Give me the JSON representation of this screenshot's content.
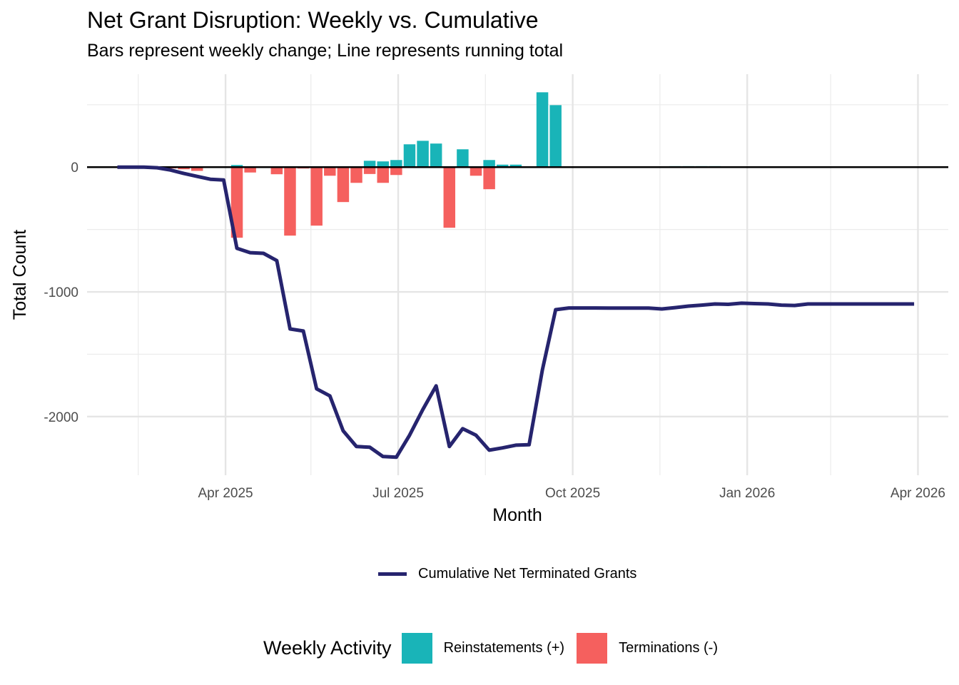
{
  "chart_data": {
    "type": "bar+line",
    "title": "Net Grant Disruption: Weekly vs. Cumulative",
    "subtitle": "Bars represent weekly change; Line represents running total",
    "xlabel": "Month",
    "ylabel": "Total Count",
    "xlim": [
      "2025-01-18",
      "2026-04-17"
    ],
    "ylim": [
      -2470,
      745
    ],
    "grid": true,
    "x_ticks": [
      {
        "date": "2025-04-01",
        "label": "Apr 2025"
      },
      {
        "date": "2025-07-01",
        "label": "Jul 2025"
      },
      {
        "date": "2025-10-01",
        "label": "Oct 2025"
      },
      {
        "date": "2026-01-01",
        "label": "Jan 2026"
      },
      {
        "date": "2026-04-01",
        "label": "Apr 2026"
      }
    ],
    "x_minor_ticks": [
      "2025-02-14",
      "2025-05-16",
      "2025-08-16",
      "2025-11-16",
      "2026-02-14"
    ],
    "y_ticks": [
      {
        "value": 0,
        "label": "0"
      },
      {
        "value": -1000,
        "label": "-1000"
      },
      {
        "value": -2000,
        "label": "-2000"
      }
    ],
    "y_minor_ticks": [
      500,
      -500,
      -1500
    ],
    "reference_line": 0,
    "bar_series": [
      {
        "name": "Reinstatements (+)",
        "color": "#19B4B8",
        "points": [
          {
            "date": "2025-04-07",
            "value": 17
          },
          {
            "date": "2025-04-14",
            "value": 6
          },
          {
            "date": "2025-05-19",
            "value": 7
          },
          {
            "date": "2025-06-16",
            "value": 51
          },
          {
            "date": "2025-06-23",
            "value": 46
          },
          {
            "date": "2025-06-30",
            "value": 57
          },
          {
            "date": "2025-07-07",
            "value": 183
          },
          {
            "date": "2025-07-14",
            "value": 211
          },
          {
            "date": "2025-07-21",
            "value": 189
          },
          {
            "date": "2025-08-04",
            "value": 143
          },
          {
            "date": "2025-08-18",
            "value": 57
          },
          {
            "date": "2025-08-25",
            "value": 20
          },
          {
            "date": "2025-09-01",
            "value": 20
          },
          {
            "date": "2025-09-15",
            "value": 600
          },
          {
            "date": "2025-09-22",
            "value": 497
          },
          {
            "date": "2025-09-29",
            "value": 5
          },
          {
            "date": "2025-11-24",
            "value": 8
          },
          {
            "date": "2025-12-01",
            "value": 8
          },
          {
            "date": "2025-12-08",
            "value": 8
          },
          {
            "date": "2025-12-15",
            "value": 8
          }
        ]
      },
      {
        "name": "Terminations (-)",
        "color": "#F5605E",
        "points": [
          {
            "date": "2025-03-03",
            "value": -10
          },
          {
            "date": "2025-03-10",
            "value": -17
          },
          {
            "date": "2025-03-17",
            "value": -30
          },
          {
            "date": "2025-03-24",
            "value": -4
          },
          {
            "date": "2025-04-07",
            "value": -566
          },
          {
            "date": "2025-04-14",
            "value": -43
          },
          {
            "date": "2025-04-28",
            "value": -57
          },
          {
            "date": "2025-05-05",
            "value": -549
          },
          {
            "date": "2025-05-12",
            "value": -11
          },
          {
            "date": "2025-05-19",
            "value": -469
          },
          {
            "date": "2025-05-26",
            "value": -69
          },
          {
            "date": "2025-06-02",
            "value": -280
          },
          {
            "date": "2025-06-09",
            "value": -126
          },
          {
            "date": "2025-06-16",
            "value": -55
          },
          {
            "date": "2025-06-23",
            "value": -126
          },
          {
            "date": "2025-06-30",
            "value": -63
          },
          {
            "date": "2025-07-28",
            "value": -486
          },
          {
            "date": "2025-08-11",
            "value": -69
          },
          {
            "date": "2025-08-18",
            "value": -177
          }
        ]
      }
    ],
    "line_series": {
      "name": "Cumulative Net Terminated Grants",
      "color": "#26246E",
      "points": [
        {
          "date": "2025-02-03",
          "value": 0
        },
        {
          "date": "2025-02-10",
          "value": 0
        },
        {
          "date": "2025-02-17",
          "value": 0
        },
        {
          "date": "2025-02-24",
          "value": -5
        },
        {
          "date": "2025-03-03",
          "value": -23
        },
        {
          "date": "2025-03-10",
          "value": -51
        },
        {
          "date": "2025-03-17",
          "value": -74
        },
        {
          "date": "2025-03-24",
          "value": -97
        },
        {
          "date": "2025-03-31",
          "value": -103
        },
        {
          "date": "2025-04-07",
          "value": -651
        },
        {
          "date": "2025-04-14",
          "value": -686
        },
        {
          "date": "2025-04-21",
          "value": -691
        },
        {
          "date": "2025-04-28",
          "value": -749
        },
        {
          "date": "2025-05-05",
          "value": -1297
        },
        {
          "date": "2025-05-12",
          "value": -1314
        },
        {
          "date": "2025-05-19",
          "value": -1777
        },
        {
          "date": "2025-05-26",
          "value": -1834
        },
        {
          "date": "2025-06-02",
          "value": -2114
        },
        {
          "date": "2025-06-09",
          "value": -2240
        },
        {
          "date": "2025-06-16",
          "value": -2245
        },
        {
          "date": "2025-06-23",
          "value": -2320
        },
        {
          "date": "2025-06-30",
          "value": -2326
        },
        {
          "date": "2025-07-07",
          "value": -2149
        },
        {
          "date": "2025-07-14",
          "value": -1943
        },
        {
          "date": "2025-07-21",
          "value": -1754
        },
        {
          "date": "2025-07-28",
          "value": -2240
        },
        {
          "date": "2025-08-04",
          "value": -2097
        },
        {
          "date": "2025-08-11",
          "value": -2149
        },
        {
          "date": "2025-08-18",
          "value": -2269
        },
        {
          "date": "2025-08-25",
          "value": -2251
        },
        {
          "date": "2025-09-01",
          "value": -2229
        },
        {
          "date": "2025-09-08",
          "value": -2226
        },
        {
          "date": "2025-09-15",
          "value": -1626
        },
        {
          "date": "2025-09-22",
          "value": -1143
        },
        {
          "date": "2025-09-29",
          "value": -1129
        },
        {
          "date": "2025-10-06",
          "value": -1129
        },
        {
          "date": "2025-10-13",
          "value": -1129
        },
        {
          "date": "2025-10-20",
          "value": -1130
        },
        {
          "date": "2025-10-27",
          "value": -1130
        },
        {
          "date": "2025-11-03",
          "value": -1130
        },
        {
          "date": "2025-11-10",
          "value": -1130
        },
        {
          "date": "2025-11-17",
          "value": -1137
        },
        {
          "date": "2025-11-24",
          "value": -1126
        },
        {
          "date": "2025-12-01",
          "value": -1114
        },
        {
          "date": "2025-12-08",
          "value": -1106
        },
        {
          "date": "2025-12-15",
          "value": -1097
        },
        {
          "date": "2025-12-22",
          "value": -1100
        },
        {
          "date": "2025-12-29",
          "value": -1091
        },
        {
          "date": "2026-01-05",
          "value": -1094
        },
        {
          "date": "2026-01-12",
          "value": -1097
        },
        {
          "date": "2026-01-19",
          "value": -1106
        },
        {
          "date": "2026-01-26",
          "value": -1109
        },
        {
          "date": "2026-02-02",
          "value": -1097
        },
        {
          "date": "2026-02-09",
          "value": -1097
        },
        {
          "date": "2026-02-16",
          "value": -1097
        },
        {
          "date": "2026-02-23",
          "value": -1097
        },
        {
          "date": "2026-03-02",
          "value": -1097
        },
        {
          "date": "2026-03-09",
          "value": -1097
        },
        {
          "date": "2026-03-16",
          "value": -1097
        },
        {
          "date": "2026-03-23",
          "value": -1097
        },
        {
          "date": "2026-03-30",
          "value": -1097
        }
      ]
    },
    "legends": {
      "line_legend": {
        "label": "Cumulative Net Terminated Grants",
        "placement": "bottom"
      },
      "fill_legend": {
        "title": "Weekly Activity",
        "placement": "bottom",
        "items": [
          {
            "label": "Reinstatements (+)",
            "color": "#19B4B8"
          },
          {
            "label": "Terminations (-)",
            "color": "#F5605E"
          }
        ]
      }
    }
  }
}
